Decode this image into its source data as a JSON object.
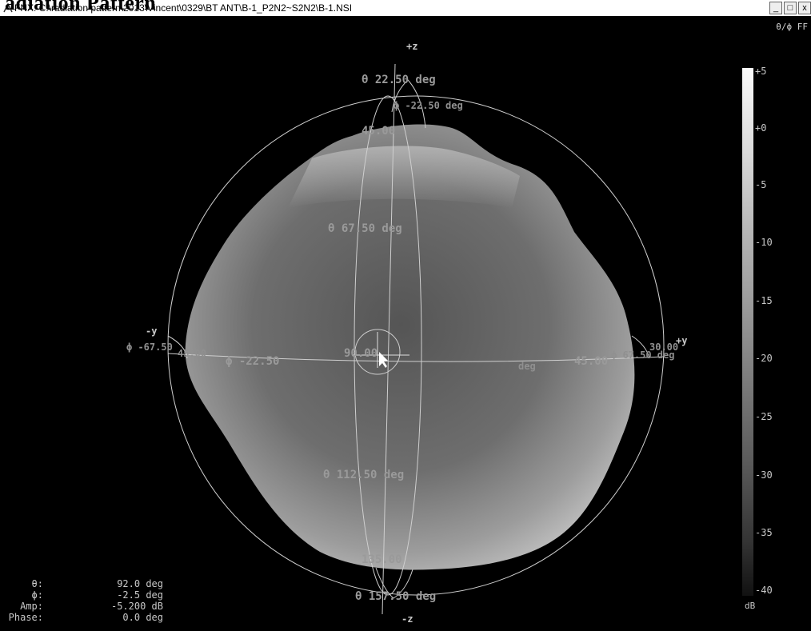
{
  "window": {
    "title": "FNX: C:\\radiation pattern\\2013\\Vincent\\0329\\BT ANT\\B-1_P2N2~S2N2\\B-1.NSI",
    "overlay_text": "adiation Pattern",
    "buttons": {
      "minimize": "_",
      "maximize": "□",
      "close": "x"
    }
  },
  "mode_label": "θ/ϕ FF",
  "axes": {
    "top": "+z",
    "bottom": "-z",
    "left": "-y",
    "right": "+y"
  },
  "pattern_labels": {
    "theta_22": "θ 22.50 deg",
    "phi_neg22_top": "ϕ -22.50 deg",
    "theta_45": "45.00",
    "theta_67": "θ 67.50 deg",
    "theta_90": "90.00",
    "phi_neg67": "ϕ -67.50",
    "phi_neg67_val": "45.00",
    "phi_neg22_left": "ϕ -22.50",
    "mid_deg": "deg",
    "right_45": "45.00",
    "phi_67_right": "ϕ 67.50 deg",
    "right_30": "30.00",
    "theta_112": "θ 112.50 deg",
    "theta_135": "135.00",
    "theta_157": "θ 157.50 deg"
  },
  "colorbar": {
    "ticks": [
      "+5",
      "+0",
      "-5",
      "-10",
      "-15",
      "-20",
      "-25",
      "-30",
      "-35",
      "-40"
    ],
    "unit": "dB"
  },
  "readout": [
    {
      "label": "θ:",
      "value": "92.0 deg"
    },
    {
      "label": "ϕ:",
      "value": "-2.5 deg"
    },
    {
      "label": "Amp:",
      "value": "-5.200 dB"
    },
    {
      "label": "Phase:",
      "value": "0.0 deg"
    }
  ]
}
